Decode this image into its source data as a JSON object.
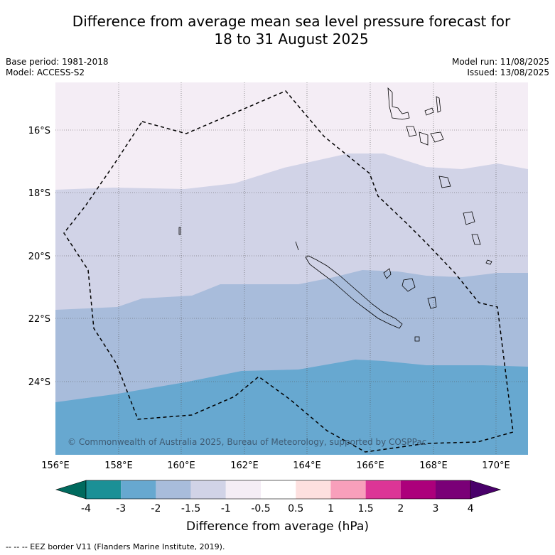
{
  "title_line1": "Difference from average mean sea level pressure forecast for",
  "title_line2": "18 to 31 August 2025",
  "base_period": "Base period: 1981-2018",
  "model": "Model: ACCESS-S2",
  "model_run": "Model run: 11/08/2025",
  "issued": "Issued: 13/08/2025",
  "copyright": "© Commonwealth of Australia 2025, Bureau of Meteorology, supported by COSPPac",
  "lat_labels": [
    "16°S",
    "18°S",
    "20°S",
    "22°S",
    "24°S"
  ],
  "lon_labels": [
    "156°E",
    "158°E",
    "160°E",
    "162°E",
    "164°E",
    "166°E",
    "168°E",
    "170°E"
  ],
  "colorbar": {
    "title": "Difference from average (hPa)",
    "ticks": [
      "-4",
      "-3",
      "-2",
      "-1.5",
      "-1",
      "-0.5",
      "0.5",
      "1",
      "1.5",
      "2",
      "3",
      "4"
    ],
    "colors": [
      "#006a5e",
      "#1b9096",
      "#67a8d0",
      "#a8bcdb",
      "#d1d3e7",
      "#f4edf5",
      "#ffffff",
      "#fde0df",
      "#f89fbb",
      "#dc3596",
      "#ac007b",
      "#7a0077",
      "#49006a"
    ]
  },
  "eez_note": "--  --  -- EEZ border V11 (Flanders Marine Institute, 2019).",
  "regions": [
    {
      "name": "-1 to -0.5",
      "color": "#f4edf5"
    },
    {
      "name": "-1.5 to -1",
      "color": "#d1d3e7"
    },
    {
      "name": "-2 to -1.5",
      "color": "#a8bcdb"
    },
    {
      "name": "-3 to -2",
      "color": "#67a8d0"
    }
  ]
}
